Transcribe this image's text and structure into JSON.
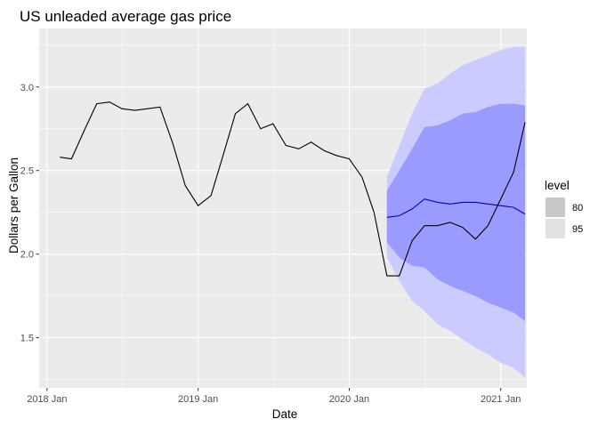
{
  "chart_data": {
    "type": "line",
    "title": "US unleaded average gas price",
    "xlabel": "Date",
    "ylabel": "Dollars per Gallon",
    "xlim": [
      "2017-12-13",
      "2021-03-05"
    ],
    "ylim": [
      1.2,
      3.35
    ],
    "x_ticks": [
      {
        "date": "2018-01-01",
        "label": "2018 Jan"
      },
      {
        "date": "2019-01-01",
        "label": "2019 Jan"
      },
      {
        "date": "2020-01-01",
        "label": "2020 Jan"
      },
      {
        "date": "2021-01-01",
        "label": "2021 Jan"
      }
    ],
    "y_ticks": [
      1.5,
      2.0,
      2.5,
      3.0
    ],
    "grid": true,
    "history": {
      "x": [
        "2018-02",
        "2018-03",
        "2018-04",
        "2018-05",
        "2018-06",
        "2018-07",
        "2018-08",
        "2018-09",
        "2018-10",
        "2018-11",
        "2018-12",
        "2019-01",
        "2019-02",
        "2019-03",
        "2019-04",
        "2019-05",
        "2019-06",
        "2019-07",
        "2019-08",
        "2019-09",
        "2019-10",
        "2019-11",
        "2019-12",
        "2020-01",
        "2020-02",
        "2020-03",
        "2020-04",
        "2020-05",
        "2020-06",
        "2020-07",
        "2020-08",
        "2020-09",
        "2020-10",
        "2020-11",
        "2020-12",
        "2021-01",
        "2021-02",
        "2021-03"
      ],
      "values": [
        2.58,
        2.57,
        2.74,
        2.9,
        2.91,
        2.87,
        2.86,
        2.87,
        2.88,
        2.66,
        2.41,
        2.29,
        2.35,
        2.58,
        2.84,
        2.9,
        2.75,
        2.78,
        2.65,
        2.63,
        2.67,
        2.62,
        2.59,
        2.57,
        2.46,
        2.25,
        1.87,
        1.87,
        2.08,
        2.17,
        2.17,
        2.19,
        2.16,
        2.09,
        2.17,
        2.33,
        2.49,
        2.79
      ]
    },
    "forecast": {
      "x": [
        "2020-04",
        "2020-05",
        "2020-06",
        "2020-07",
        "2020-08",
        "2020-09",
        "2020-10",
        "2020-11",
        "2020-12",
        "2021-01",
        "2021-02",
        "2021-03"
      ],
      "mean": [
        2.22,
        2.23,
        2.27,
        2.33,
        2.31,
        2.3,
        2.31,
        2.31,
        2.3,
        2.29,
        2.28,
        2.24
      ],
      "lo80": [
        2.07,
        1.98,
        1.93,
        1.92,
        1.85,
        1.81,
        1.78,
        1.75,
        1.71,
        1.68,
        1.65,
        1.6
      ],
      "hi80": [
        2.38,
        2.5,
        2.63,
        2.76,
        2.77,
        2.8,
        2.84,
        2.85,
        2.88,
        2.9,
        2.9,
        2.89
      ],
      "lo95": [
        1.98,
        1.84,
        1.72,
        1.66,
        1.58,
        1.54,
        1.49,
        1.44,
        1.4,
        1.35,
        1.32,
        1.26
      ],
      "hi95": [
        2.46,
        2.65,
        2.84,
        2.99,
        3.02,
        3.08,
        3.13,
        3.16,
        3.19,
        3.22,
        3.24,
        3.24
      ]
    },
    "legend": {
      "title": "level",
      "placement": "right",
      "items": [
        {
          "label": "80",
          "color": "#c8c8c8"
        },
        {
          "label": "95",
          "color": "#e2e2e2"
        }
      ]
    },
    "colors": {
      "panel": "#ebebeb",
      "grid": "#ffffff",
      "line": "#000000",
      "mean_line": "#0000ba",
      "band80": "#9b9bff",
      "band95": "#cbcbff"
    }
  }
}
